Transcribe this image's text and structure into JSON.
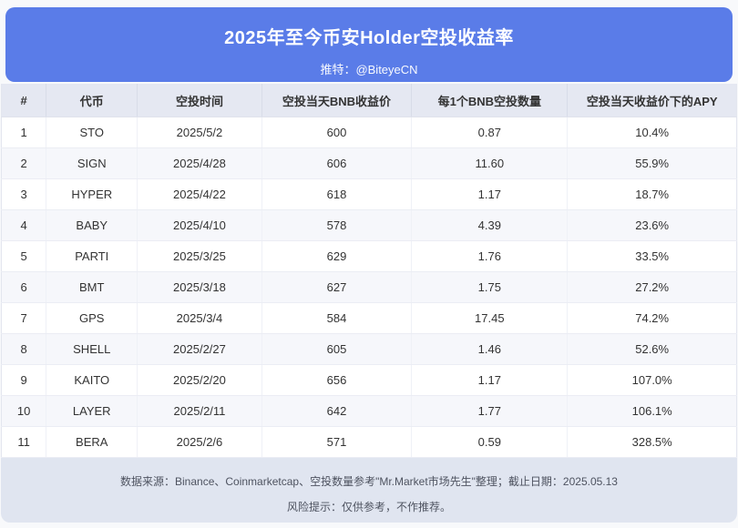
{
  "page": {
    "title": "2025年至今币安Holder空投收益率",
    "subtitle": "推特：@BiteyeCN"
  },
  "chart_data": {
    "type": "table",
    "title": "2025年至今币安Holder空投收益率",
    "subtitle": "推特：@BiteyeCN",
    "columns": [
      "#",
      "代币",
      "空投时间",
      "空投当天BNB收益价",
      "每1个BNB空投数量",
      "空投当天收益价下的APY"
    ],
    "rows": [
      [
        "1",
        "STO",
        "2025/5/2",
        "600",
        "0.87",
        "10.4%"
      ],
      [
        "2",
        "SIGN",
        "2025/4/28",
        "606",
        "11.60",
        "55.9%"
      ],
      [
        "3",
        "HYPER",
        "2025/4/22",
        "618",
        "1.17",
        "18.7%"
      ],
      [
        "4",
        "BABY",
        "2025/4/10",
        "578",
        "4.39",
        "23.6%"
      ],
      [
        "5",
        "PARTI",
        "2025/3/25",
        "629",
        "1.76",
        "33.5%"
      ],
      [
        "6",
        "BMT",
        "2025/3/18",
        "627",
        "1.75",
        "27.2%"
      ],
      [
        "7",
        "GPS",
        "2025/3/4",
        "584",
        "17.45",
        "74.2%"
      ],
      [
        "8",
        "SHELL",
        "2025/2/27",
        "605",
        "1.46",
        "52.6%"
      ],
      [
        "9",
        "KAITO",
        "2025/2/20",
        "656",
        "1.17",
        "107.0%"
      ],
      [
        "10",
        "LAYER",
        "2025/2/11",
        "642",
        "1.77",
        "106.1%"
      ],
      [
        "11",
        "BERA",
        "2025/2/6",
        "571",
        "0.59",
        "328.5%"
      ]
    ]
  },
  "footer": {
    "source_line": "数据来源：Binance、Coinmarketcap、空投数量参考\"Mr.Market市场先生\"整理；截止日期：2025.05.13",
    "risk_line": "风险提示：仅供参考，不作推荐。"
  },
  "colors": {
    "banner_blue": "#5A7CE8",
    "banner_text": "#FFFFFF",
    "header_row_bg": "#E5E8F2",
    "even_row_bg": "#F6F7FB",
    "footer_bg": "#E0E5F0",
    "table_text": "#333333",
    "footer_text": "#4E5360"
  }
}
